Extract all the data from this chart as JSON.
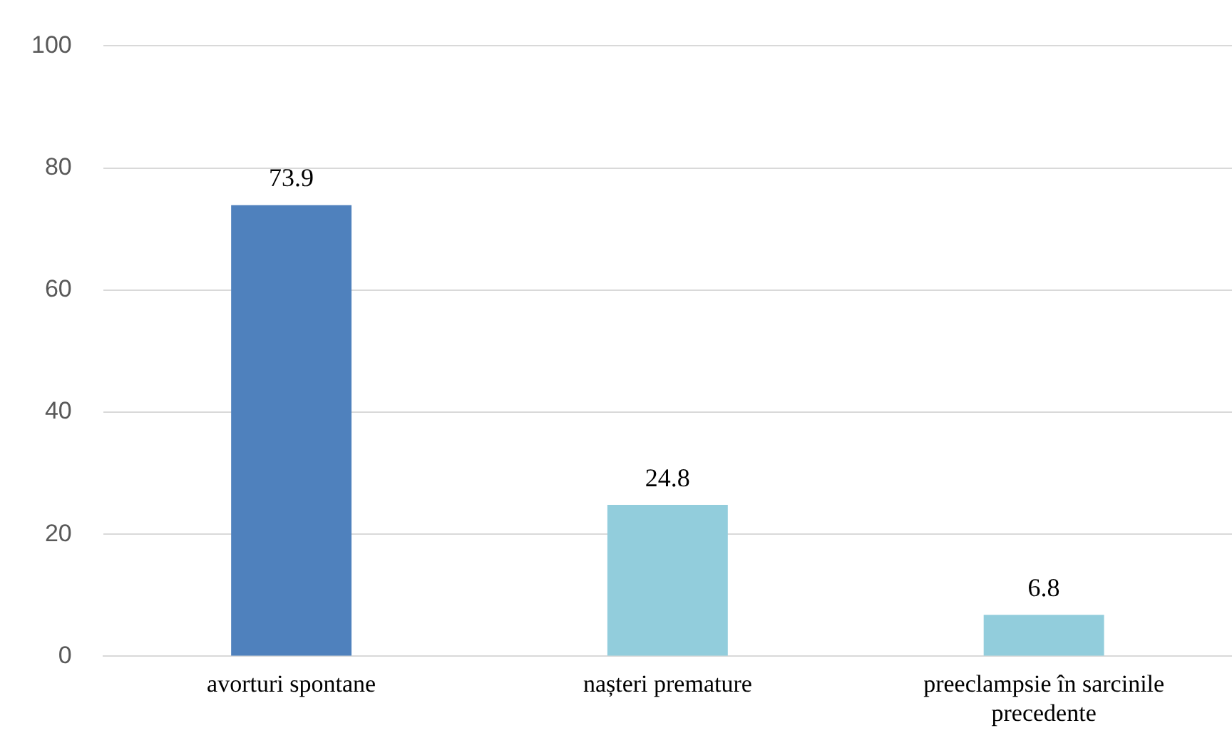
{
  "chart_data": {
    "type": "bar",
    "categories": [
      "avorturi spontane",
      "nașteri premature",
      "preeclampsie în sarcinile precedente"
    ],
    "values": [
      73.9,
      24.8,
      6.8
    ],
    "colors": [
      "#4f81bd",
      "#92cddc",
      "#92cddc"
    ],
    "ylim": [
      0,
      100
    ],
    "yticks": [
      0,
      20,
      40,
      60,
      80,
      100
    ],
    "grid": "y",
    "data_labels": true
  }
}
